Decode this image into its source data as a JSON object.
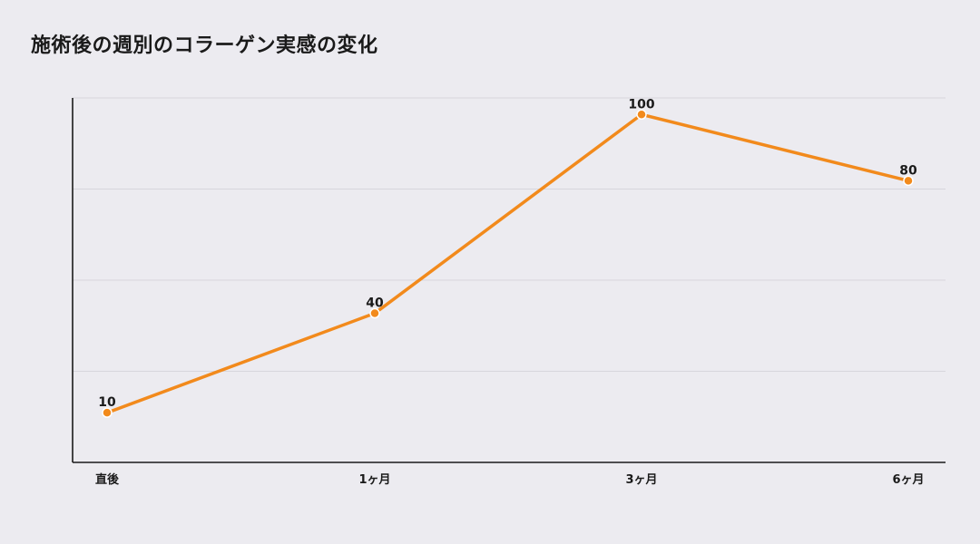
{
  "chart_data": {
    "type": "line",
    "title": "施術後の週別のコラーゲン実感の変化",
    "xlabel": "",
    "ylabel": "",
    "categories": [
      "直後",
      "1ヶ月",
      "3ヶ月",
      "6ヶ月"
    ],
    "values": [
      10,
      40,
      100,
      80
    ],
    "ylim": [
      -5,
      105
    ],
    "grid": true,
    "data_labels": true,
    "colors": {
      "series": "#f28a1c",
      "axis": "#1a1a1a",
      "grid": "#d7d6dc"
    }
  }
}
